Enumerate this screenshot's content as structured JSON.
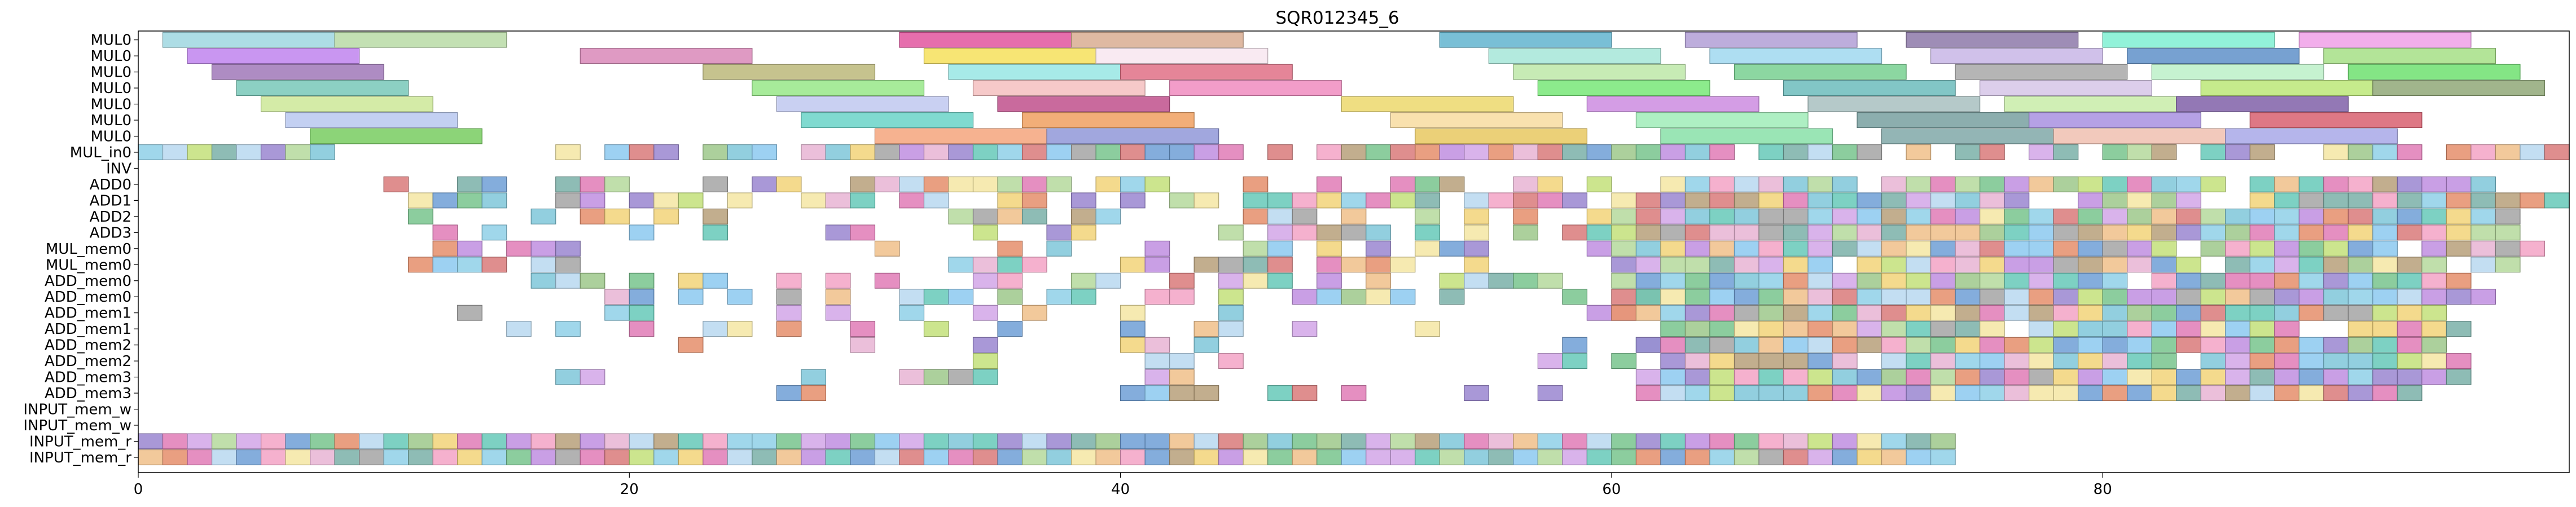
{
  "chart_data": {
    "type": "gantt",
    "title": "SQR012345_6",
    "xlabel": "",
    "ylabel": "",
    "xlim": [
      0,
      99
    ],
    "x_ticks": [
      0,
      20,
      40,
      60,
      80
    ],
    "x_tick_labels": [
      "0",
      "20",
      "40",
      "60",
      "80"
    ],
    "grid": false,
    "rows": [
      "MUL0",
      "MUL0",
      "MUL0",
      "MUL0",
      "MUL0",
      "MUL0",
      "MUL0",
      "MUL_in0",
      "INV",
      "ADD0",
      "ADD1",
      "ADD2",
      "ADD3",
      "MUL_mem0",
      "MUL_mem0",
      "ADD_mem0",
      "ADD_mem0",
      "ADD_mem1",
      "ADD_mem1",
      "ADD_mem2",
      "ADD_mem2",
      "ADD_mem3",
      "ADD_mem3",
      "INPUT_mem_w",
      "INPUT_mem_w",
      "INPUT_mem_r",
      "INPUT_mem_r"
    ],
    "tasks": [
      {
        "row": 0,
        "start": 1,
        "end": 8,
        "color": "#9fd7e0"
      },
      {
        "row": 0,
        "start": 8,
        "end": 15,
        "color": "#b9dba6"
      },
      {
        "row": 0,
        "start": 31,
        "end": 38,
        "color": "#e2559f"
      },
      {
        "row": 0,
        "start": 38,
        "end": 45,
        "color": "#d9ad92"
      },
      {
        "row": 0,
        "start": 53,
        "end": 60,
        "color": "#62b4cf"
      },
      {
        "row": 0,
        "start": 63,
        "end": 70,
        "color": "#b19fd6"
      },
      {
        "row": 0,
        "start": 72,
        "end": 79,
        "color": "#8d79a9"
      },
      {
        "row": 0,
        "start": 80,
        "end": 87,
        "color": "#7ff0d2"
      },
      {
        "row": 0,
        "start": 88,
        "end": 95,
        "color": "#f0a0e8"
      },
      {
        "row": 1,
        "start": 2,
        "end": 9,
        "color": "#c084ef"
      },
      {
        "row": 1,
        "start": 18,
        "end": 25,
        "color": "#d988b8"
      },
      {
        "row": 1,
        "start": 32,
        "end": 39,
        "color": "#f6e15c"
      },
      {
        "row": 1,
        "start": 39,
        "end": 46,
        "color": "#f8e6f0"
      },
      {
        "row": 1,
        "start": 55,
        "end": 62,
        "color": "#a6e6d8"
      },
      {
        "row": 1,
        "start": 64,
        "end": 71,
        "color": "#a0d8f0"
      },
      {
        "row": 1,
        "start": 73,
        "end": 80,
        "color": "#c8b6e6"
      },
      {
        "row": 1,
        "start": 81,
        "end": 88,
        "color": "#5f90c9"
      },
      {
        "row": 1,
        "start": 89,
        "end": 96,
        "color": "#a6df86"
      },
      {
        "row": 2,
        "start": 3,
        "end": 10,
        "color": "#a078b8"
      },
      {
        "row": 2,
        "start": 23,
        "end": 30,
        "color": "#bcb87a"
      },
      {
        "row": 2,
        "start": 33,
        "end": 40,
        "color": "#98e6e4"
      },
      {
        "row": 2,
        "start": 40,
        "end": 47,
        "color": "#e07086"
      },
      {
        "row": 2,
        "start": 56,
        "end": 63,
        "color": "#bde8a8"
      },
      {
        "row": 2,
        "start": 65,
        "end": 72,
        "color": "#78d090"
      },
      {
        "row": 2,
        "start": 74,
        "end": 81,
        "color": "#a8a8a8"
      },
      {
        "row": 2,
        "start": 82,
        "end": 89,
        "color": "#bcf0c8"
      },
      {
        "row": 2,
        "start": 90,
        "end": 97,
        "color": "#6ee070"
      },
      {
        "row": 3,
        "start": 4,
        "end": 11,
        "color": "#78c8b8"
      },
      {
        "row": 3,
        "start": 25,
        "end": 32,
        "color": "#98e888"
      },
      {
        "row": 3,
        "start": 34,
        "end": 41,
        "color": "#f4c0c0"
      },
      {
        "row": 3,
        "start": 42,
        "end": 49,
        "color": "#f08cc0"
      },
      {
        "row": 3,
        "start": 57,
        "end": 64,
        "color": "#78e878"
      },
      {
        "row": 3,
        "start": 67,
        "end": 74,
        "color": "#6cbcbc"
      },
      {
        "row": 3,
        "start": 75,
        "end": 82,
        "color": "#d6c6e8"
      },
      {
        "row": 3,
        "start": 84,
        "end": 91,
        "color": "#bce878"
      },
      {
        "row": 3,
        "start": 91,
        "end": 98,
        "color": "#90a878"
      },
      {
        "row": 4,
        "start": 5,
        "end": 12,
        "color": "#cce898"
      },
      {
        "row": 4,
        "start": 26,
        "end": 33,
        "color": "#c0c8f0"
      },
      {
        "row": 4,
        "start": 35,
        "end": 42,
        "color": "#c0508c"
      },
      {
        "row": 4,
        "start": 49,
        "end": 56,
        "color": "#ecd86c"
      },
      {
        "row": 4,
        "start": 59,
        "end": 66,
        "color": "#cc8ce0"
      },
      {
        "row": 4,
        "start": 68,
        "end": 75,
        "color": "#a8c0c0"
      },
      {
        "row": 4,
        "start": 76,
        "end": 83,
        "color": "#c8eca8"
      },
      {
        "row": 4,
        "start": 83,
        "end": 90,
        "color": "#8060a8"
      },
      {
        "row": 5,
        "start": 6,
        "end": 13,
        "color": "#b8c8f0"
      },
      {
        "row": 5,
        "start": 27,
        "end": 34,
        "color": "#6ad4c8"
      },
      {
        "row": 5,
        "start": 36,
        "end": 43,
        "color": "#f0a060"
      },
      {
        "row": 5,
        "start": 51,
        "end": 58,
        "color": "#f8dca0"
      },
      {
        "row": 5,
        "start": 61,
        "end": 68,
        "color": "#a0ecb8"
      },
      {
        "row": 5,
        "start": 70,
        "end": 77,
        "color": "#78a0a0"
      },
      {
        "row": 5,
        "start": 77,
        "end": 84,
        "color": "#a890e0"
      },
      {
        "row": 5,
        "start": 86,
        "end": 93,
        "color": "#d86070"
      },
      {
        "row": 6,
        "start": 7,
        "end": 14,
        "color": "#78cc60"
      },
      {
        "row": 6,
        "start": 30,
        "end": 37,
        "color": "#f4a47c"
      },
      {
        "row": 6,
        "start": 37,
        "end": 44,
        "color": "#9098d8"
      },
      {
        "row": 6,
        "start": 52,
        "end": 59,
        "color": "#e8c860"
      },
      {
        "row": 6,
        "start": 62,
        "end": 69,
        "color": "#88e0a8"
      },
      {
        "row": 6,
        "start": 71,
        "end": 78,
        "color": "#80a8a8"
      },
      {
        "row": 6,
        "start": 78,
        "end": 85,
        "color": "#f0c0b0"
      },
      {
        "row": 6,
        "start": 85,
        "end": 92,
        "color": "#a8a8e8"
      }
    ]
  }
}
